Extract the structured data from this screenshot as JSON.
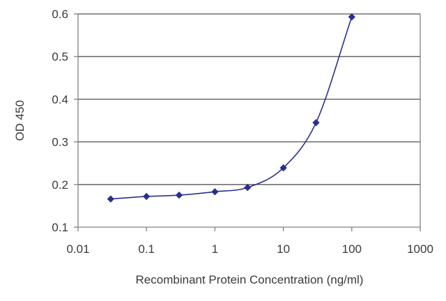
{
  "chart_data": {
    "type": "scatter",
    "title": "",
    "xlabel": "Recombinant Protein Concentration (ng/ml)",
    "ylabel": "OD 450",
    "x_scale": "log",
    "xlim": [
      0.01,
      1000
    ],
    "ylim": [
      0.1,
      0.6
    ],
    "x_ticks": [
      0.01,
      0.1,
      1,
      10,
      100,
      1000
    ],
    "x_tick_labels": [
      "0.01",
      "0.1",
      "1",
      "10",
      "100",
      "1000"
    ],
    "y_ticks": [
      0.1,
      0.2,
      0.3,
      0.4,
      0.5,
      0.6
    ],
    "y_tick_labels": [
      "0.1",
      "0.2",
      "0.3",
      "0.4",
      "0.5",
      "0.6"
    ],
    "grid": "horizontal",
    "legend": "none",
    "fitted_curve": true,
    "colors": {
      "series": "#2a2f8f",
      "grid": "#555555",
      "axis": "#808080",
      "text": "#3a3a3a"
    },
    "series": [
      {
        "x": [
          0.03,
          0.1,
          0.3,
          1,
          3,
          10,
          30,
          100
        ],
        "y": [
          0.166,
          0.172,
          0.175,
          0.183,
          0.193,
          0.239,
          0.345,
          0.593
        ]
      }
    ]
  }
}
